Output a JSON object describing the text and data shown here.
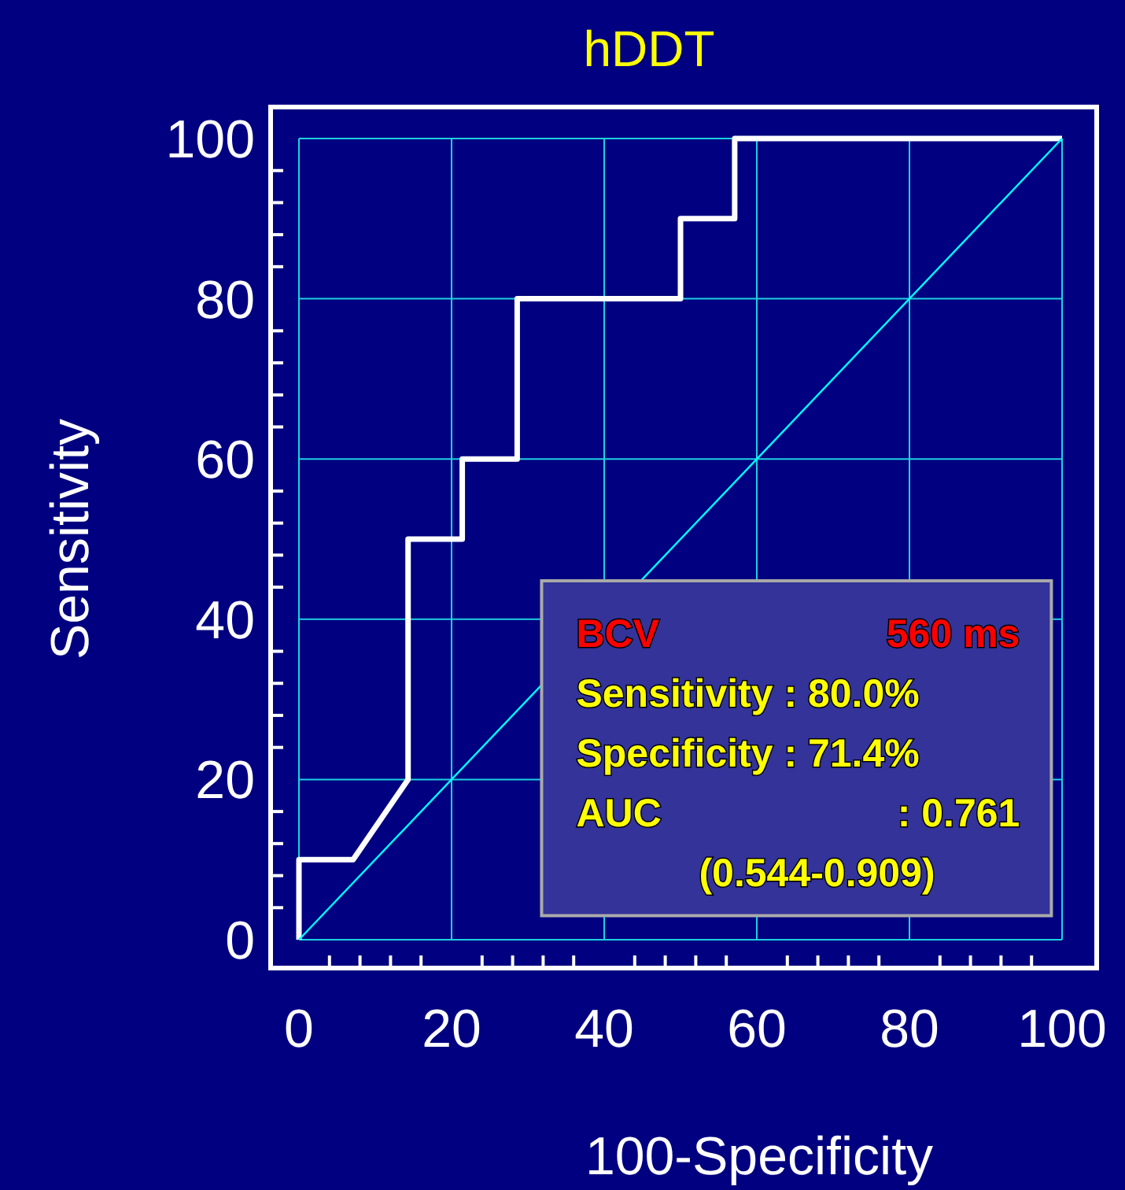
{
  "chart_data": {
    "type": "line",
    "title": "hDDT",
    "xlabel": "100-Specificity",
    "ylabel": "Sensitivity",
    "series": [
      {
        "color": "#ffffff",
        "x": [
          0,
          0,
          7.1,
          14.3,
          14.3,
          21.4,
          21.4,
          28.6,
          28.6,
          50,
          50,
          57.1,
          57.1,
          100
        ],
        "values": [
          0,
          10,
          10,
          20,
          50,
          50,
          60,
          60,
          80,
          80,
          90,
          90,
          100,
          100
        ]
      },
      {
        "color": "#00ffff",
        "x": [
          0,
          100
        ],
        "values": [
          0,
          100
        ]
      }
    ],
    "xlim": [
      0,
      100
    ],
    "ylim": [
      0,
      100
    ],
    "xticks": [
      0,
      20,
      40,
      60,
      80,
      100
    ],
    "yticks": [
      0,
      20,
      40,
      60,
      80,
      100
    ],
    "grid": true,
    "line_style": "solid",
    "annotations": [
      "BCV",
      "560 ms",
      "Sensitivity : 80.0%",
      "Specificity : 71.4%",
      "AUC",
      ": 0.761",
      "(0.544-0.909)"
    ]
  }
}
